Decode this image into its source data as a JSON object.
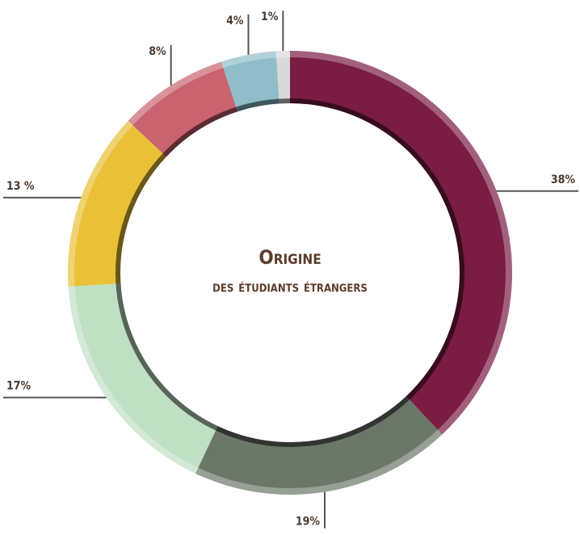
{
  "chart_data": {
    "type": "donut",
    "title": "Origine",
    "subtitle": "des étudiants étrangers",
    "categories": [
      null,
      null,
      null,
      null,
      null,
      null,
      null
    ],
    "values": [
      38,
      19,
      17,
      13,
      8,
      4,
      1
    ],
    "value_labels": [
      "38%",
      "19%",
      "17%",
      "13 %",
      "8%",
      "4%",
      "1%"
    ],
    "colors": [
      "#7a1c44",
      "#6b7868",
      "#bfe0c3",
      "#e9c036",
      "#c9636f",
      "#8fbdca",
      "#d9d9d9"
    ]
  }
}
